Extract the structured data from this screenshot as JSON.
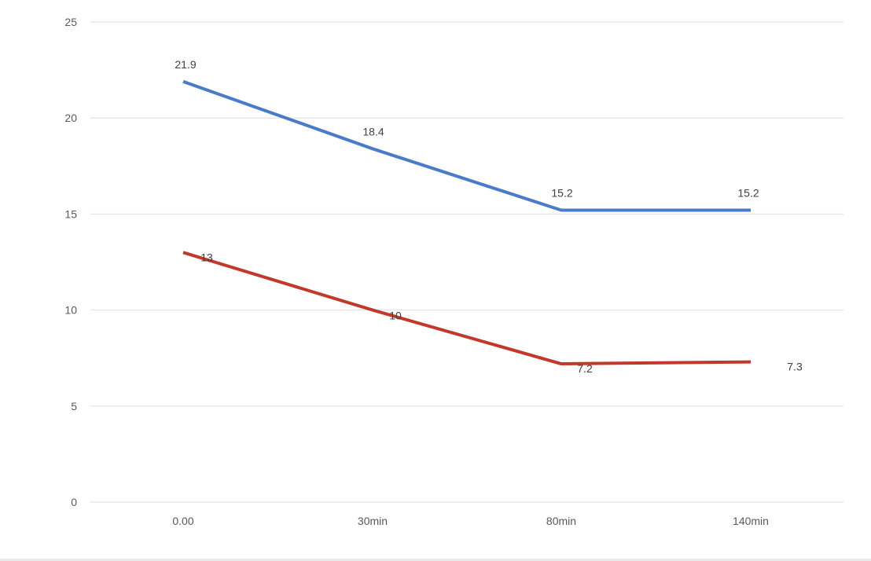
{
  "chart_data": {
    "type": "line",
    "title": "",
    "xlabel": "",
    "ylabel": "",
    "categories": [
      "0.00",
      "30min",
      "80min",
      "140min"
    ],
    "ylim": [
      0,
      25
    ],
    "yticks": [
      0,
      5,
      10,
      15,
      20,
      25
    ],
    "grid": true,
    "legend": "none",
    "series": [
      {
        "color": "#4a7bc8",
        "values": [
          21.9,
          18.4,
          15.2,
          15.2
        ],
        "labels": [
          "21.9",
          "18.4",
          "15.2",
          "15.2"
        ]
      },
      {
        "color": "#c0392b",
        "values": [
          13,
          10,
          7.2,
          7.3
        ],
        "labels": [
          "13",
          "10",
          "7.2",
          "7.3"
        ]
      }
    ]
  }
}
